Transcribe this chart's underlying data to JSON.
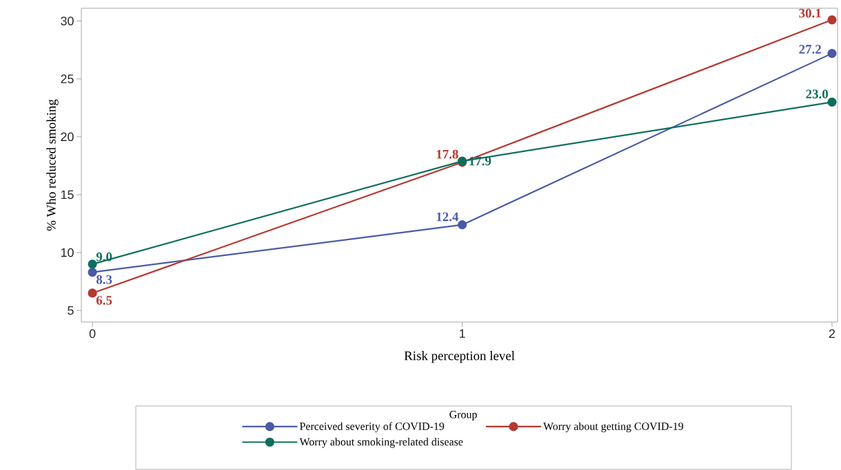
{
  "chart_data": {
    "type": "line",
    "xlabel": "Risk perception level",
    "ylabel": "% Who reduced smoking",
    "legend_title": "Group",
    "x": [
      0,
      1,
      2
    ],
    "xlim": [
      -0.03,
      2.015
    ],
    "xticks": [
      0,
      1,
      2
    ],
    "ylim": [
      4,
      31.1
    ],
    "yticks": [
      5,
      10,
      15,
      20,
      25,
      30
    ],
    "series": [
      {
        "name": "Perceived severity of COVID-19",
        "color": "#4a5aa8",
        "values": [
          8.3,
          12.4,
          27.2
        ],
        "value_labels": [
          "8.3",
          "12.4",
          "27.2"
        ]
      },
      {
        "name": "Worry about getting COVID-19",
        "color": "#b5382e",
        "values": [
          6.5,
          17.8,
          30.1
        ],
        "value_labels": [
          "6.5",
          "17.8",
          "30.1"
        ]
      },
      {
        "name": "Worry about smoking-related disease",
        "color": "#0e6e5e",
        "values": [
          9.0,
          17.9,
          23.0
        ],
        "value_labels": [
          "9.0",
          "17.9",
          "23.0"
        ]
      }
    ],
    "marker": "circle",
    "legend": "bottom",
    "grid": false,
    "line_style": "solid"
  }
}
